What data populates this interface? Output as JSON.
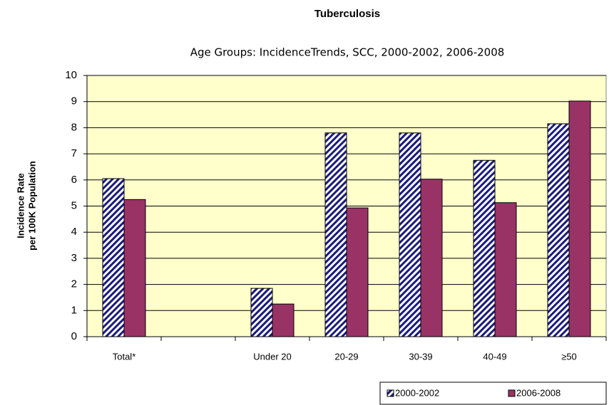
{
  "chart_data": {
    "type": "bar",
    "title": "Tuberculosis",
    "subtitle": "Age Groups: IncidenceTrends,  SCC, 2000-2002, 2006-2008",
    "ylabel": [
      "Incidence Rate",
      "per 100K Population"
    ],
    "categories": [
      "Total*",
      null,
      "Under 20",
      "20-29",
      "30-39",
      "40-49",
      "≥50"
    ],
    "series": [
      {
        "name": "2000-2002",
        "color": "#1a1a80",
        "hatch": true,
        "values": [
          6.05,
          null,
          1.85,
          7.8,
          7.8,
          6.75,
          8.15
        ]
      },
      {
        "name": "2006-2008",
        "color": "#993366",
        "hatch": false,
        "values": [
          5.25,
          null,
          1.25,
          4.93,
          6.03,
          5.13,
          9.02
        ]
      }
    ],
    "ylim": [
      0,
      10
    ],
    "yticks": [
      0,
      1,
      2,
      3,
      4,
      5,
      6,
      7,
      8,
      9,
      10
    ],
    "grid": true,
    "plot_background": "#ffffcc",
    "legend": "bottom-right"
  }
}
